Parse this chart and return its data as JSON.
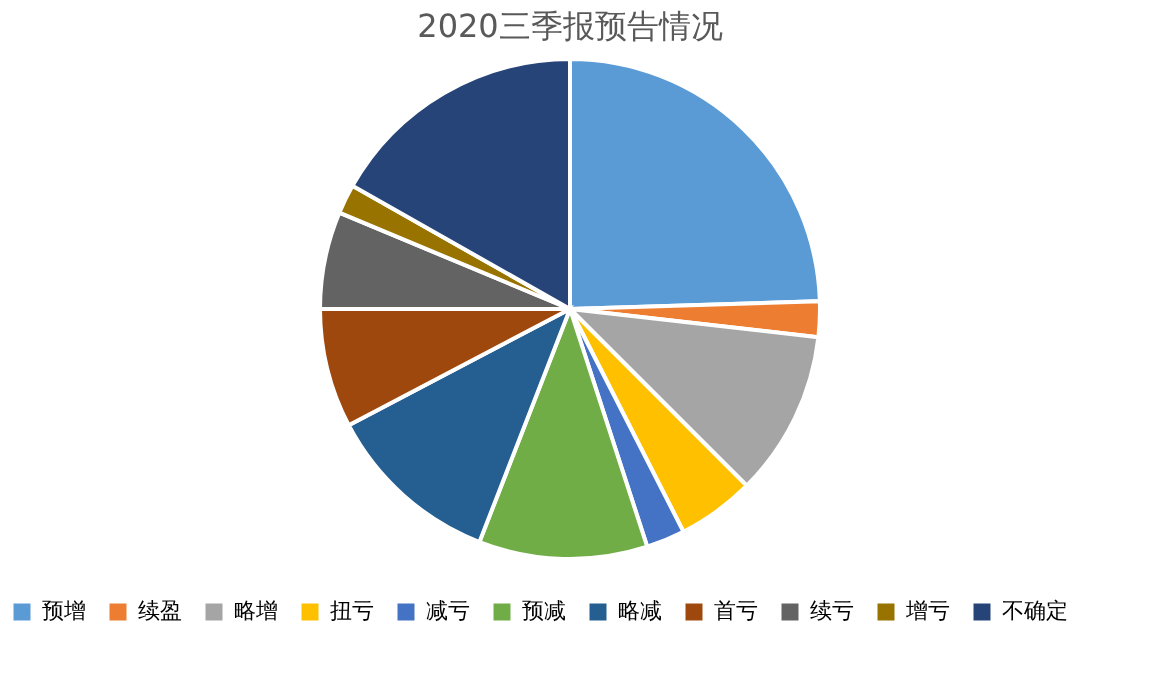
{
  "chart_data": {
    "type": "pie",
    "title": "2020三季报预告情况",
    "categories": [
      "预增",
      "续盈",
      "略增",
      "扭亏",
      "减亏",
      "预减",
      "略减",
      "首亏",
      "续亏",
      "增亏",
      "不确定"
    ],
    "values": [
      24.5,
      2.3,
      10.7,
      5.0,
      2.5,
      10.9,
      11.4,
      7.7,
      6.3,
      1.9,
      16.8
    ],
    "colors": [
      "#5b9bd5",
      "#ed7d31",
      "#a5a5a5",
      "#ffc000",
      "#4472c4",
      "#70ad47",
      "#255e91",
      "#9e480e",
      "#636363",
      "#997300",
      "#264478"
    ],
    "legend": "bottom"
  }
}
